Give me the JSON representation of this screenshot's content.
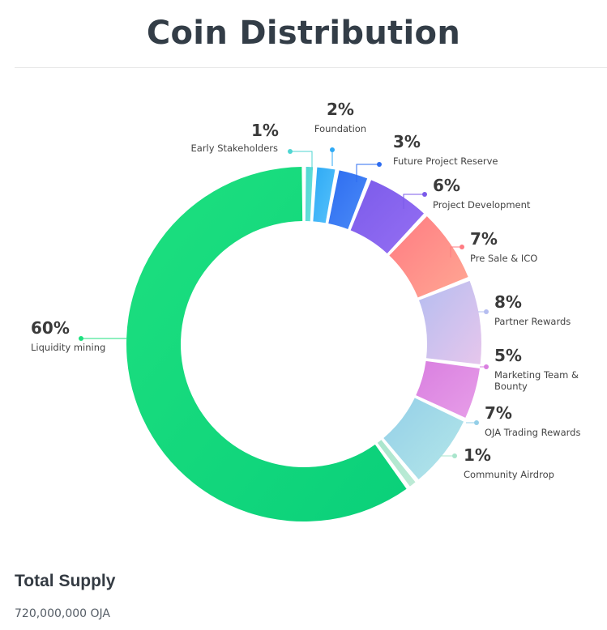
{
  "page": {
    "title": "Coin Distribution"
  },
  "supply": {
    "heading": "Total Supply",
    "value": "720,000,000 OJA"
  },
  "chart_data": {
    "type": "pie",
    "variant": "donut",
    "start_at": "top (12 o'clock), clockwise",
    "categories": [
      "Early Stakeholders",
      "Foundation",
      "Future Project Reserve",
      "Project Development",
      "Pre Sale & ICO",
      "Partner Rewards",
      "Marketing Team & Bounty",
      "OJA Trading Rewards",
      "Community Airdrop",
      "Liquidity mining"
    ],
    "slices": [
      {
        "label": "Early Stakeholders",
        "lines": [
          "Early Stakeholders"
        ],
        "value": 1,
        "pct": "1%",
        "color": "#4fd6d2",
        "color2": "#6fe0dc"
      },
      {
        "label": "Foundation",
        "lines": [
          "Foundation"
        ],
        "value": 2,
        "pct": "2%",
        "color": "#2ea9f5",
        "color2": "#56c2fb"
      },
      {
        "label": "Future Project Reserve",
        "lines": [
          "Future Project Reserve"
        ],
        "value": 3,
        "pct": "3%",
        "color": "#2d6cf0",
        "color2": "#4b8bf7"
      },
      {
        "label": "Project Development",
        "lines": [
          "Project Development"
        ],
        "value": 6,
        "pct": "6%",
        "color": "#7b5bea",
        "color2": "#956ff3"
      },
      {
        "label": "Pre Sale & ICO",
        "lines": [
          "Pre Sale & ICO"
        ],
        "value": 7,
        "pct": "7%",
        "color": "#ff7b82",
        "color2": "#ffa793"
      },
      {
        "label": "Partner Rewards",
        "lines": [
          "Partner Rewards"
        ],
        "value": 8,
        "pct": "8%",
        "color": "#b5bdf0",
        "color2": "#e6c6ec"
      },
      {
        "label": "Marketing Team & Bounty",
        "lines": [
          "Marketing Team &",
          "Bounty"
        ],
        "value": 5,
        "pct": "5%",
        "color": "#d97fe0",
        "color2": "#e79ee8"
      },
      {
        "label": "OJA Trading Rewards",
        "lines": [
          "OJA Trading Rewards"
        ],
        "value": 7,
        "pct": "7%",
        "color": "#94cfe8",
        "color2": "#b4e7e9"
      },
      {
        "label": "Community Airdrop",
        "lines": [
          "Community Airdrop"
        ],
        "value": 1,
        "pct": "1%",
        "color": "#a9e5cc",
        "color2": "#bdebd6"
      },
      {
        "label": "Liquidity mining",
        "lines": [
          "Liquidity mining"
        ],
        "value": 60,
        "pct": "60%",
        "color": "#1ee07f",
        "color2": "#0ad07a"
      }
    ],
    "title": "Coin Distribution",
    "legend": "none (callout labels)",
    "grid": false
  }
}
